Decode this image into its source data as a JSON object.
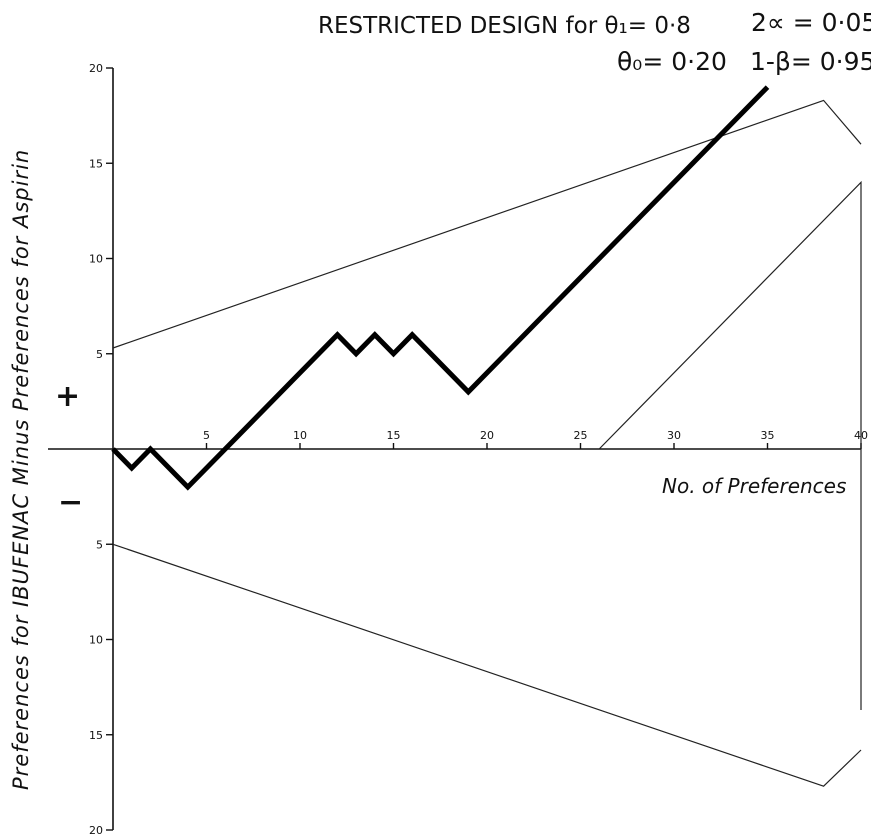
{
  "chart_data": {
    "type": "line",
    "title": "RESTRICTED DESIGN for θ₁= 0·8",
    "parameters": [
      "2∝ = 0·05",
      "θ₀= 0·20",
      "1-β= 0·95"
    ],
    "ylabel": "Preferences for IBUFENAC Minus Preferences for Aspirin",
    "xlabel": "No. of Preferences",
    "sign_upper": "+",
    "sign_lower": "−",
    "xlim": [
      0,
      40
    ],
    "ylim": [
      -20,
      20
    ],
    "x_ticks": [
      5,
      10,
      15,
      20,
      25,
      30,
      35,
      40
    ],
    "x_tick_labels": [
      "5",
      "10",
      "15",
      "20",
      "25",
      "30",
      "35",
      "40"
    ],
    "y_ticks": [
      20,
      15,
      10,
      5,
      -5,
      -10,
      -15,
      -20
    ],
    "y_tick_labels": [
      "20",
      "15",
      "10",
      "5",
      "5",
      "10",
      "15",
      "20"
    ],
    "series": [
      {
        "role": "sequential-path",
        "x": [
          0,
          1,
          2,
          4,
          12,
          13,
          14,
          15,
          16,
          19,
          35
        ],
        "y": [
          0,
          -1,
          0,
          -2,
          6,
          5,
          6,
          5,
          6,
          3,
          19
        ]
      }
    ],
    "boundaries": [
      {
        "role": "upper-boundary",
        "x": [
          0,
          38,
          40
        ],
        "y": [
          5.3,
          18.3,
          16
        ]
      },
      {
        "role": "middle-boundary",
        "x": [
          26,
          40,
          40
        ],
        "y": [
          0,
          14,
          -13.7
        ]
      },
      {
        "role": "lower-boundary",
        "x": [
          0,
          38,
          40
        ],
        "y": [
          -5,
          -17.7,
          -15.8
        ]
      }
    ]
  }
}
